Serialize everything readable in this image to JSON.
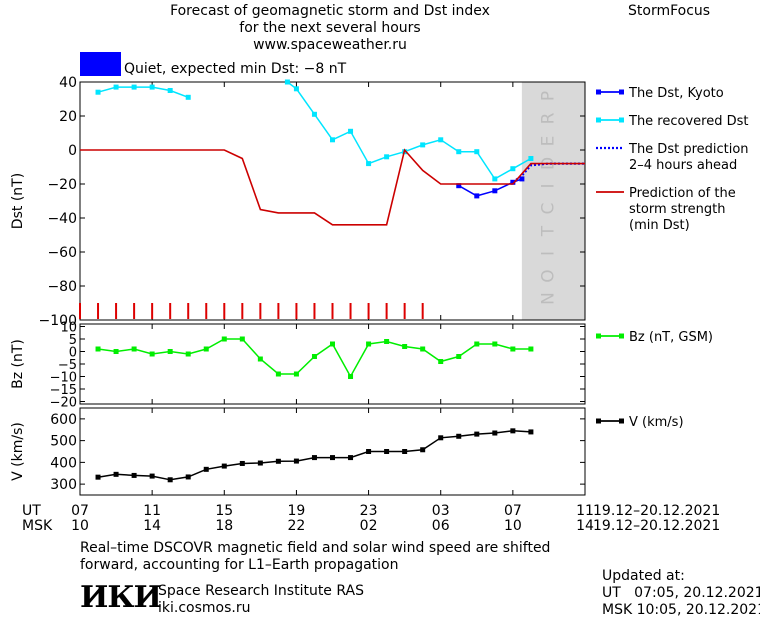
{
  "header": {
    "title_line1": "Forecast of geomagnetic storm and Dst index",
    "title_line2": "for the next several hours",
    "url": "www.spaceweather.ru",
    "brand": "StormFocus",
    "status_color": "#0000ff",
    "status_text": "Quiet, expected min Dst: −8 nT"
  },
  "legend_dst": [
    {
      "label": [
        "The Dst, Kyoto"
      ],
      "color": "#0000ff",
      "style": "line-square"
    },
    {
      "label": [
        "The recovered Dst"
      ],
      "color": "#00e5ff",
      "style": "line-square"
    },
    {
      "label": [
        "The Dst prediction",
        "2–4 hours ahead"
      ],
      "color": "#0000ff",
      "style": "dotted"
    },
    {
      "label": [
        "Prediction of the",
        "storm strength",
        "(min Dst)"
      ],
      "color": "#cc0000",
      "style": "line"
    }
  ],
  "legend_bz": {
    "label": "Bz (nT, GSM)",
    "color": "#00ee00"
  },
  "legend_v": {
    "label": "V (km/s)",
    "color": "#000000"
  },
  "prediction_text": "PREDICTION",
  "time_axis": {
    "ut_label": "UT",
    "msk_label": "MSK",
    "ut_ticks": [
      "07",
      "11",
      "15",
      "19",
      "23",
      "03",
      "07",
      "11"
    ],
    "msk_ticks": [
      "10",
      "14",
      "18",
      "22",
      "02",
      "06",
      "10",
      "14"
    ],
    "ut_range": "19.12–20.12.2021",
    "msk_range": "19.12–20.12.2021"
  },
  "footer": {
    "note_line1": "Real–time DSCOVR magnetic field and solar wind speed are shifted",
    "note_line2": "forward, accounting for L1–Earth propagation",
    "logo": "ИКИ",
    "institute": "Space Research Institute RAS",
    "site": "iki.cosmos.ru",
    "updated_label": "Updated at:",
    "updated_ut": "UT   07:05, 20.12.2021",
    "updated_msk": "MSK 10:05, 20.12.2021"
  },
  "chart_data": [
    {
      "type": "line",
      "ylabel": "Dst (nT)",
      "xlim": [
        0,
        28
      ],
      "ylim": [
        -100,
        40
      ],
      "yticks": [
        -100,
        -80,
        -60,
        -40,
        -20,
        0,
        20,
        40
      ],
      "prediction_region": [
        24.5,
        28
      ],
      "series": [
        {
          "name": "The Dst, Kyoto",
          "color": "#0000ff",
          "points": [
            [
              21,
              -21
            ],
            [
              22,
              -27
            ],
            [
              23,
              -24
            ],
            [
              24,
              -19
            ],
            [
              24.5,
              -17
            ]
          ]
        },
        {
          "name": "The recovered Dst",
          "color": "#00e5ff",
          "segments": [
            [
              [
                1,
                34
              ],
              [
                2,
                37
              ],
              [
                3,
                37
              ],
              [
                4,
                37
              ],
              [
                5,
                35
              ],
              [
                6,
                31
              ]
            ],
            [
              [
                11.5,
                40
              ],
              [
                12,
                36
              ],
              [
                13,
                21
              ],
              [
                14,
                6
              ],
              [
                15,
                11
              ],
              [
                16,
                -8
              ],
              [
                17,
                -4
              ],
              [
                18,
                -1
              ],
              [
                19,
                3
              ],
              [
                20,
                6
              ],
              [
                21,
                -1
              ],
              [
                22,
                -1
              ],
              [
                23,
                -17
              ],
              [
                24,
                -11
              ],
              [
                25,
                -5
              ]
            ]
          ]
        },
        {
          "name": "The Dst prediction 2–4 hours ahead",
          "color": "#0000ff",
          "points": [
            [
              24,
              -19
            ],
            [
              24.5,
              -15
            ],
            [
              25,
              -9
            ],
            [
              26,
              -8
            ],
            [
              28,
              -8
            ]
          ]
        },
        {
          "name": "Prediction of the storm strength (min Dst)",
          "color": "#cc0000",
          "points": [
            [
              0,
              0
            ],
            [
              8,
              0
            ],
            [
              9,
              -5
            ],
            [
              10,
              -35
            ],
            [
              11,
              -37
            ],
            [
              13,
              -37
            ],
            [
              14,
              -44
            ],
            [
              17,
              -44
            ],
            [
              18,
              0
            ],
            [
              19,
              -12
            ],
            [
              20,
              -20
            ],
            [
              24,
              -20
            ],
            [
              25,
              -8
            ],
            [
              28,
              -8
            ]
          ]
        }
      ],
      "storm_ticks": [
        0,
        1,
        2,
        3,
        4,
        5,
        6,
        7,
        8,
        9,
        10,
        11,
        12,
        13,
        14,
        15,
        16,
        17,
        18,
        19
      ]
    },
    {
      "type": "line",
      "ylabel": "Bz (nT)",
      "xlim": [
        0,
        28
      ],
      "ylim": [
        -21,
        11
      ],
      "yticks": [
        10,
        5,
        0,
        -5,
        -10,
        -15,
        -20
      ],
      "series": [
        {
          "name": "Bz (nT, GSM)",
          "color": "#00ee00",
          "points": [
            [
              1,
              1
            ],
            [
              2,
              0
            ],
            [
              3,
              1
            ],
            [
              4,
              -1
            ],
            [
              5,
              0
            ],
            [
              6,
              -1
            ],
            [
              7,
              1
            ],
            [
              8,
              5
            ],
            [
              9,
              5
            ],
            [
              10,
              -3
            ],
            [
              11,
              -9
            ],
            [
              12,
              -9
            ],
            [
              13,
              -2
            ],
            [
              14,
              3
            ],
            [
              15,
              -10
            ],
            [
              16,
              3
            ],
            [
              17,
              4
            ],
            [
              18,
              2
            ],
            [
              19,
              1
            ],
            [
              20,
              -4
            ],
            [
              21,
              -2
            ],
            [
              22,
              3
            ],
            [
              23,
              3
            ],
            [
              24,
              1
            ],
            [
              25,
              1
            ]
          ]
        }
      ]
    },
    {
      "type": "line",
      "ylabel": "V (km/s)",
      "xlim": [
        0,
        28
      ],
      "ylim": [
        250,
        650
      ],
      "yticks": [
        300,
        400,
        500,
        600
      ],
      "series": [
        {
          "name": "V (km/s)",
          "color": "#000000",
          "points": [
            [
              1,
              332
            ],
            [
              2,
              345
            ],
            [
              3,
              340
            ],
            [
              4,
              337
            ],
            [
              5,
              320
            ],
            [
              6,
              333
            ],
            [
              7,
              368
            ],
            [
              8,
              383
            ],
            [
              9,
              395
            ],
            [
              10,
              397
            ],
            [
              11,
              405
            ],
            [
              12,
              406
            ],
            [
              13,
              422
            ],
            [
              14,
              422
            ],
            [
              15,
              422
            ],
            [
              16,
              450
            ],
            [
              17,
              450
            ],
            [
              18,
              450
            ],
            [
              19,
              458
            ],
            [
              20,
              513
            ],
            [
              21,
              520
            ],
            [
              22,
              530
            ],
            [
              23,
              535
            ],
            [
              24,
              545
            ],
            [
              25,
              540
            ]
          ]
        }
      ]
    }
  ]
}
